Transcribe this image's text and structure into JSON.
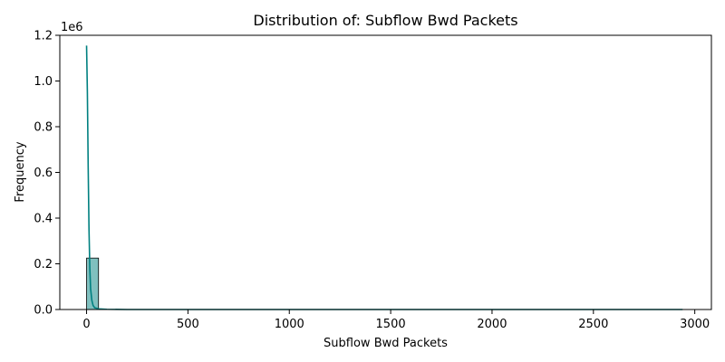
{
  "chart_data": {
    "type": "bar",
    "title": "Distribution of: Subflow Bwd Packets",
    "xlabel": "Subflow Bwd Packets",
    "ylabel": "Frequency",
    "y_offset_label": "1e6",
    "xlim": [
      -132,
      3082
    ],
    "ylim": [
      0,
      1.2
    ],
    "x_ticks": [
      {
        "value": 0,
        "label": "0"
      },
      {
        "value": 500,
        "label": "500"
      },
      {
        "value": 1000,
        "label": "1000"
      },
      {
        "value": 1500,
        "label": "1500"
      },
      {
        "value": 2000,
        "label": "2000"
      },
      {
        "value": 2500,
        "label": "2500"
      },
      {
        "value": 3000,
        "label": "3000"
      }
    ],
    "y_ticks": [
      {
        "value": 0.0,
        "label": "0.0"
      },
      {
        "value": 0.2,
        "label": "0.2"
      },
      {
        "value": 0.4,
        "label": "0.4"
      },
      {
        "value": 0.6,
        "label": "0.6"
      },
      {
        "value": 0.8,
        "label": "0.8"
      },
      {
        "value": 1.0,
        "label": "1.0"
      },
      {
        "value": 1.2,
        "label": "1.2"
      }
    ],
    "bins": [
      {
        "x0": 0,
        "x1": 59,
        "value": 0.225
      }
    ],
    "kde": {
      "x": [
        0,
        4,
        8,
        12,
        16,
        20,
        26,
        32,
        40,
        60,
        100,
        200,
        500,
        1000,
        1500,
        2000,
        2500,
        2940
      ],
      "y": [
        1.155,
        0.95,
        0.62,
        0.35,
        0.18,
        0.09,
        0.04,
        0.018,
        0.008,
        0.003,
        0.001,
        0.0,
        0.0,
        0.0,
        0.0,
        0.0,
        0.0,
        0.0
      ]
    },
    "grid": false,
    "legend": "none",
    "colors": {
      "bar_fill": "#80c0bf",
      "bar_edge": "#000000",
      "kde_line": "#008080",
      "axis": "#000000"
    }
  }
}
